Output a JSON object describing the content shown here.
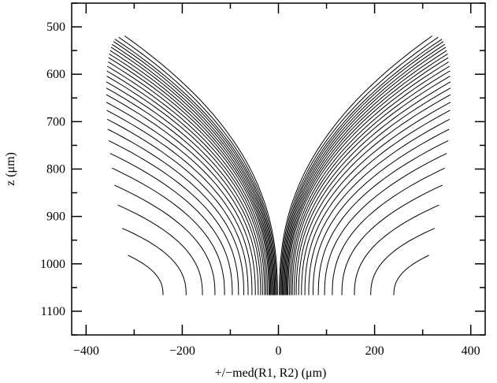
{
  "chart_data": {
    "type": "line",
    "title": "",
    "xlabel": "+/−med(R1, R2) (μm)",
    "ylabel": "z (μm)",
    "xlim": [
      -430,
      430
    ],
    "ylim": [
      1150,
      450
    ],
    "y_inverted": true,
    "grid": false,
    "legend": "none",
    "x_ticks": [
      -400,
      -200,
      0,
      200,
      400
    ],
    "x_tick_labels": [
      "−400",
      "−200",
      "0",
      "200",
      "400"
    ],
    "y_ticks": [
      500,
      600,
      700,
      800,
      900,
      1000,
      1100
    ],
    "y_tick_labels": [
      "500",
      "600",
      "700",
      "800",
      "900",
      "1000",
      "1100"
    ],
    "line_color": "#000000",
    "description": "Family of black curves mirrored about x = 0; each curve starts near the surface (z ≈ 520–1010 μm) at large |x| and bends down to z ≈ 1065 μm; inner curves converge to x ≈ 0 near z ≈ 535 μm.",
    "series": [
      {
        "start_z": 519,
        "start_x": 320,
        "end_x": 2
      },
      {
        "start_z": 522,
        "start_x": 332,
        "end_x": 4
      },
      {
        "start_z": 526,
        "start_x": 340,
        "end_x": 6
      },
      {
        "start_z": 531,
        "start_x": 343,
        "end_x": 8
      },
      {
        "start_z": 537,
        "start_x": 346,
        "end_x": 10
      },
      {
        "start_z": 543,
        "start_x": 348,
        "end_x": 12
      },
      {
        "start_z": 550,
        "start_x": 350,
        "end_x": 14
      },
      {
        "start_z": 557,
        "start_x": 352,
        "end_x": 16
      },
      {
        "start_z": 565,
        "start_x": 353,
        "end_x": 18
      },
      {
        "start_z": 574,
        "start_x": 354,
        "end_x": 20
      },
      {
        "start_z": 583,
        "start_x": 356,
        "end_x": 23
      },
      {
        "start_z": 593,
        "start_x": 357,
        "end_x": 26
      },
      {
        "start_z": 604,
        "start_x": 357,
        "end_x": 29
      },
      {
        "start_z": 616,
        "start_x": 358,
        "end_x": 33
      },
      {
        "start_z": 629,
        "start_x": 358,
        "end_x": 37
      },
      {
        "start_z": 643,
        "start_x": 358,
        "end_x": 42
      },
      {
        "start_z": 659,
        "start_x": 358,
        "end_x": 48
      },
      {
        "start_z": 676,
        "start_x": 357,
        "end_x": 55
      },
      {
        "start_z": 695,
        "start_x": 356,
        "end_x": 63
      },
      {
        "start_z": 716,
        "start_x": 355,
        "end_x": 72
      },
      {
        "start_z": 740,
        "start_x": 353,
        "end_x": 83
      },
      {
        "start_z": 767,
        "start_x": 350,
        "end_x": 96
      },
      {
        "start_z": 798,
        "start_x": 346,
        "end_x": 112
      },
      {
        "start_z": 834,
        "start_x": 341,
        "end_x": 132
      },
      {
        "start_z": 876,
        "start_x": 334,
        "end_x": 158
      },
      {
        "start_z": 925,
        "start_x": 325,
        "end_x": 192
      },
      {
        "start_z": 982,
        "start_x": 313,
        "end_x": 240
      }
    ]
  }
}
